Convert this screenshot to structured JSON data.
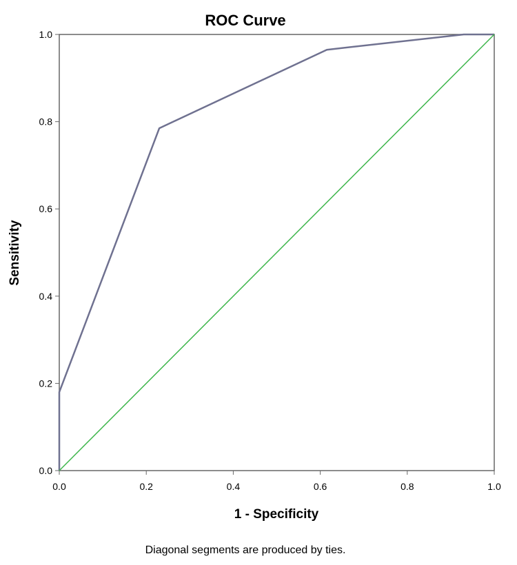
{
  "chart_data": {
    "type": "line",
    "title": "ROC Curve",
    "xlabel": "1 - Specificity",
    "ylabel": "Sensitivity",
    "xlim": [
      0,
      1
    ],
    "ylim": [
      0,
      1
    ],
    "x_ticks": [
      "0.0",
      "0.2",
      "0.4",
      "0.6",
      "0.8",
      "1.0"
    ],
    "y_ticks": [
      "0.0",
      "0.2",
      "0.4",
      "0.6",
      "0.8",
      "1.0"
    ],
    "grid": false,
    "legend": "none",
    "series": [
      {
        "color": "#6f7190",
        "x": [
          0.0,
          0.0,
          0.23,
          0.615,
          0.93,
          1.0
        ],
        "y": [
          0.0,
          0.18,
          0.785,
          0.965,
          1.0,
          1.0
        ]
      },
      {
        "color": "#3cb54a",
        "x": [
          0.0,
          1.0
        ],
        "y": [
          0.0,
          1.0
        ]
      }
    ],
    "footnote": "Diagonal segments are produced by ties."
  }
}
